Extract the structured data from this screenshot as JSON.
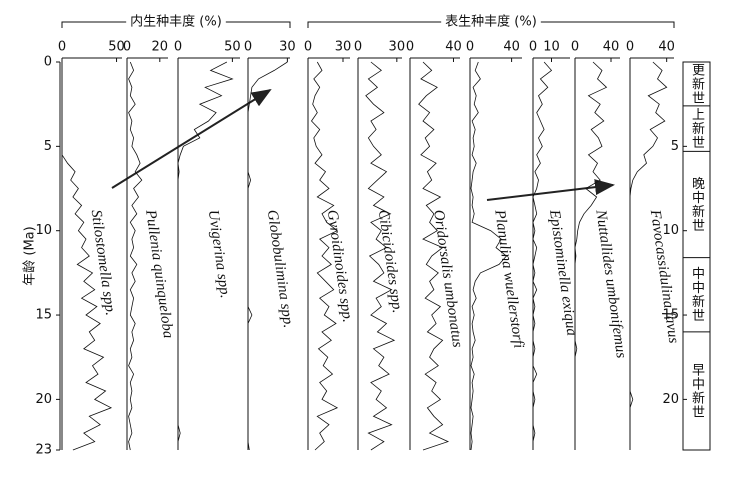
{
  "chart_data": {
    "type": "line",
    "ylabel": "年龄 (Ma)",
    "ylim": [
      0,
      23
    ],
    "yticks": [
      0,
      5,
      10,
      15,
      20,
      23
    ],
    "y2ticks": [
      5,
      10,
      15,
      20
    ],
    "group_labels": [
      "内生种丰度 (%)",
      "表生种丰度 (%)"
    ],
    "y": [
      0,
      0.5,
      1,
      1.5,
      2,
      2.5,
      3,
      3.5,
      4,
      4.5,
      5,
      5.5,
      6,
      6.5,
      7,
      7.5,
      8,
      8.5,
      9,
      9.5,
      10,
      10.5,
      11,
      11.5,
      12,
      12.5,
      13,
      13.5,
      14,
      14.5,
      15,
      15.5,
      16,
      16.5,
      17,
      17.5,
      18,
      18.5,
      19,
      19.5,
      20,
      20.5,
      21,
      21.5,
      22,
      22.5,
      23
    ],
    "panels": [
      {
        "name": "Stilostomella spp.",
        "xlim": [
          0,
          55
        ],
        "xticks": [
          0,
          50
        ],
        "values": [
          0,
          0,
          0,
          0,
          0,
          0,
          0,
          0,
          0,
          0,
          0,
          0,
          5,
          12,
          8,
          15,
          10,
          18,
          12,
          20,
          15,
          22,
          18,
          25,
          14,
          28,
          20,
          30,
          18,
          32,
          22,
          35,
          25,
          30,
          20,
          38,
          28,
          33,
          22,
          40,
          30,
          45,
          25,
          35,
          20,
          30,
          10
        ]
      },
      {
        "name": "Pullenia quinqueloba",
        "xlim": [
          0,
          25
        ],
        "xticks": [
          0,
          20
        ],
        "values": [
          2,
          4,
          1,
          3,
          2,
          5,
          1,
          3,
          2,
          4,
          3,
          6,
          8,
          5,
          9,
          4,
          7,
          3,
          6,
          2,
          5,
          3,
          4,
          2,
          6,
          3,
          5,
          2,
          4,
          3,
          2,
          5,
          3,
          4,
          2,
          3,
          1,
          4,
          2,
          3,
          2,
          3,
          1,
          2,
          3,
          1,
          2
        ]
      },
      {
        "name": "Uvigerina spp.",
        "xlim": [
          0,
          57
        ],
        "xticks": [
          0,
          50
        ],
        "values": [
          45,
          30,
          50,
          25,
          40,
          20,
          35,
          28,
          15,
          20,
          5,
          2,
          0,
          1,
          0,
          0,
          0,
          0,
          0,
          0,
          0,
          0,
          0,
          0,
          0,
          0,
          0,
          0,
          0,
          0,
          0,
          0,
          0,
          0,
          0,
          0,
          0,
          0,
          0,
          0,
          0,
          0,
          0,
          0,
          2,
          0,
          0
        ]
      },
      {
        "name": "Globobulimina spp.",
        "xlim": [
          0,
          32
        ],
        "xticks": [
          0,
          30
        ],
        "values": [
          30,
          20,
          8,
          3,
          2,
          1,
          0,
          0,
          0,
          0,
          0,
          0,
          0,
          0,
          2,
          0,
          0,
          0,
          0,
          0,
          0,
          0,
          0,
          0,
          0,
          0,
          0,
          0,
          0,
          0,
          3,
          0,
          0,
          0,
          0,
          0,
          0,
          0,
          0,
          0,
          0,
          0,
          0,
          0,
          0,
          0,
          1
        ]
      },
      {
        "name": "Gyroidinoides spp.",
        "xlim": [
          0,
          36
        ],
        "xticks": [
          0,
          30
        ],
        "values": [
          8,
          12,
          5,
          10,
          6,
          4,
          8,
          3,
          10,
          5,
          7,
          12,
          6,
          15,
          10,
          18,
          8,
          22,
          12,
          16,
          25,
          10,
          18,
          12,
          20,
          8,
          15,
          22,
          10,
          18,
          14,
          24,
          12,
          20,
          9,
          17,
          13,
          21,
          10,
          16,
          12,
          25,
          8,
          18,
          10,
          14,
          6
        ]
      },
      {
        "name": "Cibicidoides spp.",
        "xlim": [
          0,
          34
        ],
        "xticks": [
          0,
          30
        ],
        "values": [
          10,
          18,
          8,
          15,
          6,
          12,
          20,
          10,
          14,
          8,
          12,
          18,
          10,
          22,
          15,
          8,
          20,
          12,
          25,
          10,
          18,
          14,
          22,
          9,
          16,
          20,
          12,
          26,
          14,
          18,
          10,
          22,
          15,
          28,
          12,
          20,
          16,
          24,
          10,
          18,
          14,
          22,
          12,
          26,
          8,
          20,
          10
        ]
      },
      {
        "name": "Oridorsalis umbonatus",
        "xlim": [
          0,
          46
        ],
        "xticks": [
          0,
          40
        ],
        "values": [
          12,
          20,
          10,
          25,
          15,
          8,
          18,
          12,
          22,
          14,
          18,
          10,
          24,
          16,
          20,
          12,
          28,
          15,
          22,
          18,
          25,
          12,
          30,
          20,
          15,
          26,
          18,
          22,
          14,
          28,
          20,
          24,
          16,
          30,
          22,
          18,
          26,
          14,
          24,
          20,
          28,
          16,
          22,
          30,
          18,
          35,
          12
        ]
      },
      {
        "name": "Planulina wuellerstorfi",
        "xlim": [
          0,
          50
        ],
        "xticks": [
          0,
          40
        ],
        "values": [
          8,
          5,
          10,
          3,
          6,
          4,
          8,
          2,
          5,
          3,
          4,
          2,
          6,
          3,
          2,
          1,
          3,
          2,
          4,
          2,
          20,
          30,
          25,
          35,
          28,
          10,
          5,
          3,
          6,
          2,
          4,
          2,
          3,
          5,
          2,
          3,
          1,
          4,
          2,
          3,
          2,
          1,
          3,
          2,
          1,
          2,
          1
        ]
      },
      {
        "name": "Epistominella exiqua",
        "xlim": [
          0,
          20
        ],
        "xticks": [
          0,
          10
        ],
        "values": [
          6,
          10,
          4,
          8,
          3,
          5,
          2,
          4,
          6,
          3,
          5,
          2,
          4,
          1,
          3,
          2,
          0,
          1,
          2,
          0,
          1,
          0,
          2,
          1,
          0,
          1,
          0,
          2,
          0,
          1,
          0,
          1,
          0,
          0,
          1,
          0,
          0,
          2,
          0,
          0,
          1,
          0,
          0,
          0,
          1,
          0,
          0
        ]
      },
      {
        "name": "Nuttallides umbonifemus",
        "xlim": [
          0,
          50
        ],
        "xticks": [
          0,
          40
        ],
        "values": [
          20,
          30,
          25,
          35,
          15,
          28,
          22,
          32,
          18,
          26,
          30,
          15,
          25,
          20,
          28,
          12,
          24,
          18,
          10,
          5,
          3,
          2,
          0,
          1,
          0,
          0,
          0,
          0,
          0,
          0,
          0,
          0,
          0,
          0,
          2,
          0,
          0,
          0,
          0,
          0,
          0,
          0,
          0,
          0,
          0,
          0,
          0
        ]
      },
      {
        "name": "Favocassidulina favus",
        "xlim": [
          0,
          48
        ],
        "xticks": [
          0,
          40
        ],
        "values": [
          25,
          35,
          30,
          40,
          20,
          32,
          28,
          38,
          22,
          30,
          25,
          15,
          18,
          8,
          3,
          1,
          0,
          0,
          0,
          0,
          0,
          0,
          0,
          0,
          0,
          0,
          0,
          0,
          0,
          0,
          0,
          0,
          0,
          0,
          0,
          0,
          0,
          0,
          0,
          0,
          3,
          0,
          0,
          0,
          0,
          0,
          0
        ]
      }
    ],
    "epochs": [
      {
        "label": "更新世",
        "from": 0,
        "to": 2.6
      },
      {
        "label": "上新世",
        "from": 2.6,
        "to": 5.3
      },
      {
        "label": "晚中新世",
        "from": 5.3,
        "to": 11.6
      },
      {
        "label": "中中新世",
        "from": 11.6,
        "to": 16
      },
      {
        "label": "早中新世",
        "from": 16,
        "to": 23
      }
    ]
  }
}
